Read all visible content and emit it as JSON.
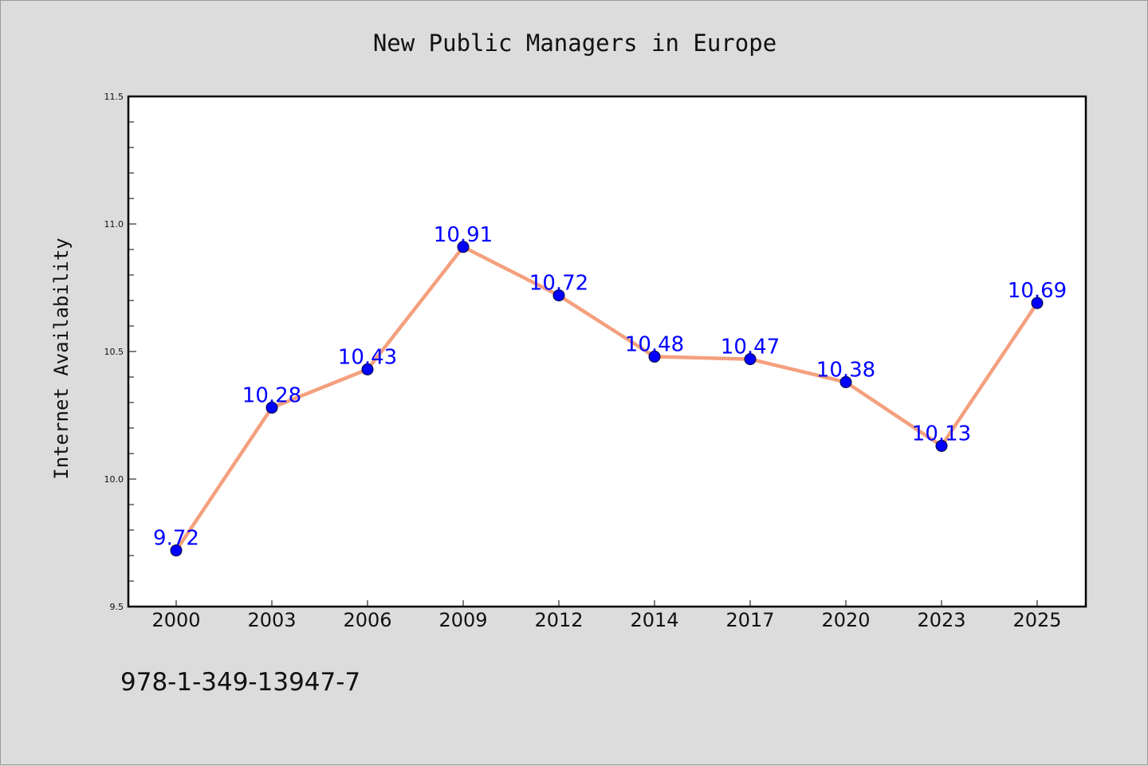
{
  "chart_data": {
    "type": "line",
    "title": "New Public Managers in Europe",
    "xlabel": "",
    "ylabel": "Internet Availability",
    "categories": [
      "2000",
      "2003",
      "2006",
      "2009",
      "2012",
      "2014",
      "2017",
      "2020",
      "2023",
      "2025"
    ],
    "series": [
      {
        "values": [
          9.72,
          10.28,
          10.43,
          10.91,
          10.72,
          10.48,
          10.47,
          10.38,
          10.13,
          10.69
        ]
      }
    ],
    "data_labels": [
      "9.72",
      "10.28",
      "10.43",
      "10.91",
      "10.72",
      "10.48",
      "10.47",
      "10.38",
      "10.13",
      "10.69"
    ],
    "ylim": [
      9.5,
      11.5
    ],
    "yticks": [
      "9.5",
      "10.0",
      "10.5",
      "11.0",
      "11.5"
    ],
    "grid": false,
    "line_color": "#f4a07e",
    "marker_color": "#0000ff",
    "label_color": "#0000ff"
  },
  "footnote": "978-1-349-13947-7"
}
